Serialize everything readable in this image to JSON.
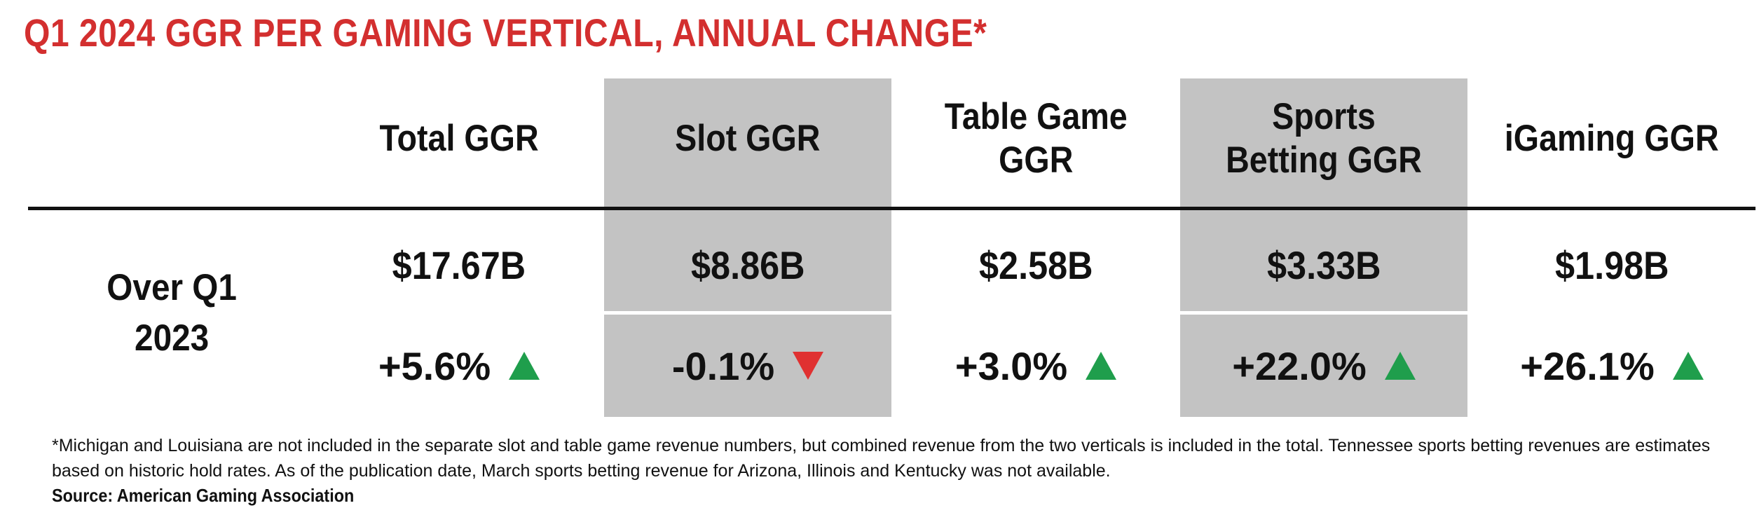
{
  "title": "Q1 2024 GGR PER GAMING VERTICAL, ANNUAL CHANGE*",
  "row_label": "Over Q1 2023",
  "colors": {
    "title_red": "#d32f2f",
    "shade_gray": "#c3c3c3",
    "up_green": "#1f9e4c",
    "down_red": "#e03131"
  },
  "chart_data": {
    "type": "table",
    "title": "Q1 2024 GGR PER GAMING VERTICAL, ANNUAL CHANGE*",
    "columns": [
      {
        "header": "Total GGR",
        "value": "$17.67B",
        "change": "+5.6%",
        "direction": "up",
        "shaded": false
      },
      {
        "header": "Slot GGR",
        "value": "$8.86B",
        "change": "-0.1%",
        "direction": "down",
        "shaded": true
      },
      {
        "header": "Table Game GGR",
        "value": "$2.58B",
        "change": "+3.0%",
        "direction": "up",
        "shaded": false
      },
      {
        "header": "Sports Betting GGR",
        "value": "$3.33B",
        "change": "+22.0%",
        "direction": "up",
        "shaded": true
      },
      {
        "header": "iGaming GGR",
        "value": "$1.98B",
        "change": "+26.1%",
        "direction": "up",
        "shaded": false
      }
    ],
    "values_billion_usd": [
      17.67,
      8.86,
      2.58,
      3.33,
      1.98
    ],
    "annual_change_pct": [
      5.6,
      -0.1,
      3.0,
      22.0,
      26.1
    ]
  },
  "footnote": "*Michigan and Louisiana are not included in the separate slot and table game revenue numbers, but combined revenue from the two verticals is included in the total. Tennessee sports betting revenues are estimates based on historic hold rates. As of the publication date, March sports betting revenue for Arizona, Illinois and Kentucky was not available.",
  "source": "Source: American Gaming Association"
}
